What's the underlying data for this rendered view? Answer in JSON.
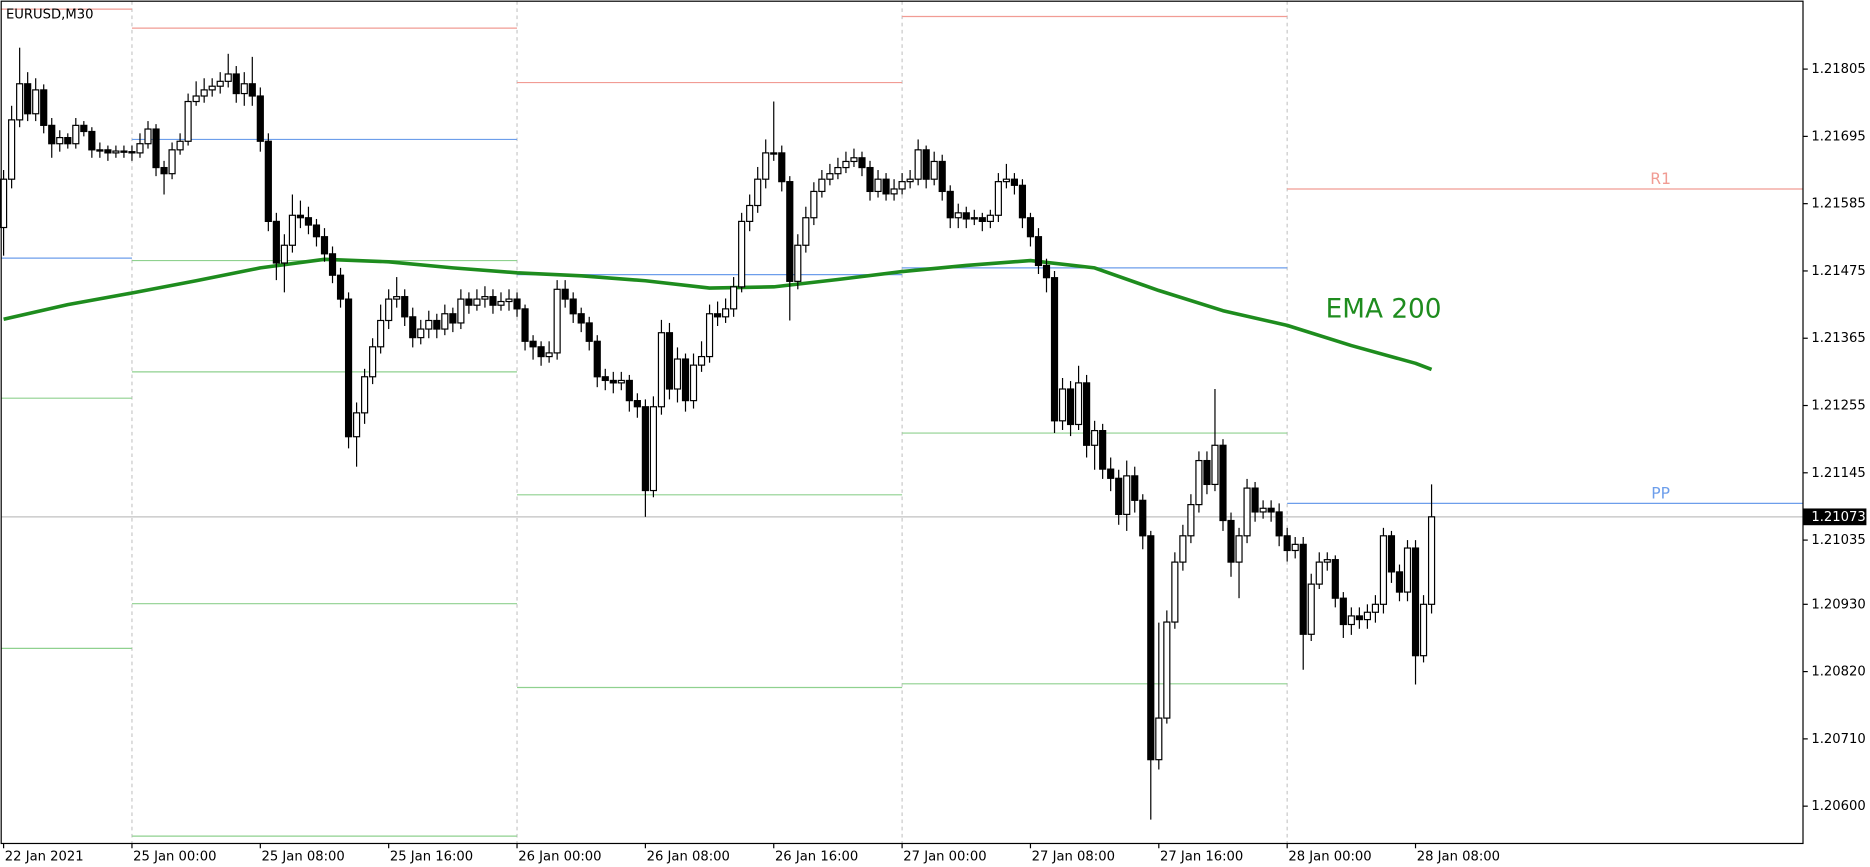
{
  "chart_data": {
    "type": "candlestick",
    "title": "EURUSD,M30",
    "open": [
      1.21546,
      1.21625,
      1.21722,
      1.21781,
      1.21732,
      1.21771,
      1.21713,
      1.21683,
      1.21693,
      1.21683,
      1.21713,
      1.21703,
      1.21673,
      1.21673,
      1.21668,
      1.21671,
      1.2167,
      1.21668,
      1.21683,
      1.21707,
      1.21644,
      1.21634,
      1.21673,
      1.21687,
      1.21752,
      1.21761,
      1.21771,
      1.21777,
      1.21785,
      1.21797,
      1.21765,
      1.21781,
      1.21761,
      1.21687,
      1.21556,
      1.21488,
      1.21517,
      1.21566,
      1.21562,
      1.2155,
      1.21531,
      1.21503,
      1.21468,
      1.21429,
      1.21204,
      1.21243,
      1.21302,
      1.21351,
      1.21394,
      1.21429,
      1.21433,
      1.214,
      1.21366,
      1.2138,
      1.21394,
      1.2138,
      1.21405,
      1.2139,
      1.21429,
      1.21419,
      1.21429,
      1.21433,
      1.21419,
      1.21425,
      1.21429,
      1.21413,
      1.2136,
      1.21351,
      1.21335,
      1.21341,
      1.21445,
      1.21429,
      1.21405,
      1.2139,
      1.2136,
      1.21302,
      1.21296,
      1.21292,
      1.21296,
      1.21263,
      1.21253,
      1.21116,
      1.21253,
      1.21374,
      1.21282,
      1.21331,
      1.21263,
      1.21321,
      1.21335,
      1.21405,
      1.214,
      1.21413,
      1.21449,
      1.21556,
      1.21582,
      1.21625,
      1.21668,
      1.21668,
      1.21621,
      1.21458,
      1.21517,
      1.21562,
      1.21605,
      1.21625,
      1.21634,
      1.21644,
      1.21654,
      1.2166,
      1.21644,
      1.21605,
      1.21625,
      1.21601,
      1.21609,
      1.21621,
      1.21625,
      1.21673,
      1.21625,
      1.21654,
      1.21605,
      1.21562,
      1.2157,
      1.2156,
      1.21562,
      1.21556,
      1.21566,
      1.21621,
      1.21625,
      1.21615,
      1.21562,
      1.21531,
      1.21484,
      1.21464,
      1.2123,
      1.21282,
      1.21224,
      1.21292,
      1.2119,
      1.21214,
      1.21151,
      1.21136,
      1.21077,
      1.2114,
      1.211,
      1.21042,
      1.20676,
      1.20744,
      1.20901,
      1.20999,
      1.21042,
      1.21093,
      1.21165,
      1.21126,
      1.2119,
      1.21067,
      1.20999,
      1.21042,
      1.2112,
      1.21081,
      1.21087,
      1.21081,
      1.21042,
      1.21018,
      1.21028,
      1.20881,
      1.20963,
      1.20999,
      1.21003,
      1.2094,
      1.20897,
      1.20911,
      1.20905,
      1.20917,
      1.2093,
      1.21042,
      1.20983,
      1.2095,
      1.21022,
      1.20846,
      1.2093
    ],
    "high": [
      1.2164,
      1.21745,
      1.2184,
      1.218,
      1.2179,
      1.2178,
      1.21725,
      1.21705,
      1.217,
      1.21725,
      1.2172,
      1.2171,
      1.21685,
      1.2168,
      1.2168,
      1.2168,
      1.2168,
      1.217,
      1.2172,
      1.21715,
      1.21655,
      1.21685,
      1.217,
      1.21765,
      1.21785,
      1.2179,
      1.2179,
      1.218,
      1.2183,
      1.2181,
      1.218,
      1.21825,
      1.21775,
      1.217,
      1.2157,
      1.21535,
      1.216,
      1.2159,
      1.2158,
      1.2156,
      1.21545,
      1.21515,
      1.2148,
      1.2144,
      1.2126,
      1.21315,
      1.21365,
      1.2142,
      1.21445,
      1.21465,
      1.21445,
      1.21415,
      1.21395,
      1.2141,
      1.21405,
      1.2142,
      1.21415,
      1.21445,
      1.2144,
      1.21445,
      1.2145,
      1.21445,
      1.2144,
      1.21445,
      1.2144,
      1.2142,
      1.2137,
      1.2136,
      1.2136,
      1.2146,
      1.2146,
      1.2144,
      1.21415,
      1.214,
      1.2137,
      1.21315,
      1.2131,
      1.2131,
      1.21305,
      1.21275,
      1.21265,
      1.2127,
      1.21395,
      1.2139,
      1.2135,
      1.2134,
      1.2134,
      1.2136,
      1.2142,
      1.21425,
      1.2143,
      1.21465,
      1.2157,
      1.216,
      1.21645,
      1.2169,
      1.21752,
      1.2168,
      1.2163,
      1.21535,
      1.2158,
      1.2162,
      1.2164,
      1.2165,
      1.2166,
      1.2167,
      1.21675,
      1.2167,
      1.21655,
      1.2164,
      1.21635,
      1.21625,
      1.21635,
      1.2164,
      1.2169,
      1.2168,
      1.2167,
      1.21665,
      1.21615,
      1.21585,
      1.2158,
      1.21575,
      1.2157,
      1.21575,
      1.21635,
      1.2165,
      1.21635,
      1.21625,
      1.2157,
      1.21545,
      1.21495,
      1.21475,
      1.213,
      1.21295,
      1.2132,
      1.21305,
      1.2123,
      1.21225,
      1.2117,
      1.2115,
      1.21165,
      1.21155,
      1.2111,
      1.2105,
      1.209,
      1.2092,
      1.21015,
      1.2106,
      1.2111,
      1.2118,
      1.2118,
      1.21282,
      1.212,
      1.2108,
      1.21055,
      1.21135,
      1.2113,
      1.211,
      1.211,
      1.21095,
      1.21055,
      1.2104,
      1.2104,
      1.2098,
      1.21015,
      1.21015,
      1.2101,
      1.2095,
      1.20925,
      1.20925,
      1.2093,
      1.20945,
      1.21055,
      1.2105,
      1.20995,
      1.21035,
      1.21035,
      1.20945,
      1.21126
    ],
    "low": [
      1.215,
      1.2161,
      1.2171,
      1.2172,
      1.2172,
      1.217,
      1.2166,
      1.2167,
      1.21675,
      1.21675,
      1.21695,
      1.2166,
      1.2166,
      1.21655,
      1.2166,
      1.2166,
      1.21655,
      1.2166,
      1.21675,
      1.2163,
      1.216,
      1.21625,
      1.21665,
      1.2168,
      1.21745,
      1.2175,
      1.2176,
      1.21765,
      1.21775,
      1.2175,
      1.21745,
      1.21745,
      1.2167,
      1.2154,
      1.2146,
      1.2144,
      1.21505,
      1.21545,
      1.21535,
      1.21515,
      1.2149,
      1.21455,
      1.21415,
      1.21185,
      1.21155,
      1.21225,
      1.2129,
      1.2134,
      1.2138,
      1.21415,
      1.21385,
      1.2135,
      1.21355,
      1.21365,
      1.21365,
      1.2137,
      1.21375,
      1.2138,
      1.21405,
      1.2141,
      1.21415,
      1.21405,
      1.2141,
      1.2141,
      1.214,
      1.21345,
      1.2133,
      1.2132,
      1.21325,
      1.2133,
      1.21415,
      1.2139,
      1.21375,
      1.21345,
      1.21285,
      1.2128,
      1.21275,
      1.2128,
      1.21245,
      1.21235,
      1.21073,
      1.21105,
      1.2124,
      1.21265,
      1.2126,
      1.21245,
      1.2125,
      1.2131,
      1.21325,
      1.21385,
      1.2139,
      1.214,
      1.2144,
      1.2154,
      1.2157,
      1.2161,
      1.21655,
      1.21605,
      1.21394,
      1.21445,
      1.21505,
      1.2155,
      1.21595,
      1.21615,
      1.21625,
      1.21635,
      1.21645,
      1.2163,
      1.2159,
      1.21595,
      1.2159,
      1.2159,
      1.216,
      1.2161,
      1.21615,
      1.2161,
      1.21615,
      1.2159,
      1.21545,
      1.21545,
      1.21545,
      1.2155,
      1.2154,
      1.21545,
      1.21555,
      1.2161,
      1.216,
      1.21545,
      1.21515,
      1.2147,
      1.2144,
      1.2121,
      1.21215,
      1.21205,
      1.21215,
      1.2117,
      1.2115,
      1.21135,
      1.21115,
      1.2106,
      1.2105,
      1.2108,
      1.2102,
      1.20578,
      1.2066,
      1.20735,
      1.2089,
      1.20985,
      1.2103,
      1.2108,
      1.2111,
      1.21115,
      1.2105,
      1.20975,
      1.2094,
      1.2103,
      1.21065,
      1.2107,
      1.21065,
      1.21025,
      1.21,
      1.21005,
      1.20823,
      1.2087,
      1.20955,
      1.20985,
      1.20925,
      1.20875,
      1.2088,
      1.2089,
      1.2089,
      1.209,
      1.20915,
      1.20965,
      1.20935,
      1.20935,
      1.20799,
      1.20835,
      1.20915
    ],
    "close": [
      1.21625,
      1.21722,
      1.21781,
      1.21732,
      1.21771,
      1.21713,
      1.21683,
      1.21693,
      1.21683,
      1.21713,
      1.21703,
      1.21673,
      1.21673,
      1.21668,
      1.21671,
      1.2167,
      1.21668,
      1.21683,
      1.21707,
      1.21644,
      1.21634,
      1.21673,
      1.21687,
      1.21752,
      1.21761,
      1.21771,
      1.21777,
      1.21785,
      1.21797,
      1.21765,
      1.21781,
      1.21761,
      1.21687,
      1.21556,
      1.21488,
      1.21517,
      1.21566,
      1.21562,
      1.2155,
      1.21531,
      1.21503,
      1.21468,
      1.21429,
      1.21204,
      1.21243,
      1.21302,
      1.21351,
      1.21394,
      1.21429,
      1.21433,
      1.214,
      1.21366,
      1.2138,
      1.21394,
      1.2138,
      1.21405,
      1.2139,
      1.21429,
      1.21419,
      1.21429,
      1.21433,
      1.21419,
      1.21425,
      1.21429,
      1.21413,
      1.2136,
      1.21351,
      1.21335,
      1.21341,
      1.21445,
      1.21429,
      1.21405,
      1.2139,
      1.2136,
      1.21302,
      1.21296,
      1.21292,
      1.21296,
      1.21263,
      1.21253,
      1.21116,
      1.21253,
      1.21374,
      1.21282,
      1.21331,
      1.21263,
      1.21321,
      1.21335,
      1.21405,
      1.214,
      1.21413,
      1.21449,
      1.21556,
      1.21582,
      1.21625,
      1.21668,
      1.21668,
      1.21621,
      1.21458,
      1.21517,
      1.21562,
      1.21605,
      1.21625,
      1.21634,
      1.21644,
      1.21654,
      1.2166,
      1.21644,
      1.21605,
      1.21625,
      1.21601,
      1.21609,
      1.21621,
      1.21625,
      1.21673,
      1.21625,
      1.21654,
      1.21605,
      1.21562,
      1.2157,
      1.2156,
      1.21562,
      1.21556,
      1.21566,
      1.21621,
      1.21625,
      1.21615,
      1.21562,
      1.21531,
      1.21484,
      1.21464,
      1.2123,
      1.21282,
      1.21224,
      1.21292,
      1.2119,
      1.21214,
      1.21151,
      1.21136,
      1.21077,
      1.2114,
      1.211,
      1.21042,
      1.20676,
      1.20744,
      1.20901,
      1.20999,
      1.21042,
      1.21093,
      1.21165,
      1.21126,
      1.2119,
      1.21067,
      1.20999,
      1.21042,
      1.2112,
      1.21081,
      1.21087,
      1.21081,
      1.21042,
      1.21018,
      1.21028,
      1.20881,
      1.20963,
      1.20999,
      1.21003,
      1.2094,
      1.20897,
      1.20911,
      1.20905,
      1.20917,
      1.2093,
      1.21042,
      1.20983,
      1.2095,
      1.21022,
      1.20846,
      1.2093,
      1.21073
    ],
    "up_color": "#ffffff",
    "down_color": "#000000",
    "xlim": [
      -0.3,
      224.3
    ],
    "xticks": [
      {
        "value": 0,
        "label": "22 Jan 2021"
      },
      {
        "value": 16,
        "label": "25 Jan 00:00"
      },
      {
        "value": 32,
        "label": "25 Jan 08:00"
      },
      {
        "value": 48,
        "label": "25 Jan 16:00"
      },
      {
        "value": 64,
        "label": "26 Jan 00:00"
      },
      {
        "value": 80,
        "label": "26 Jan 08:00"
      },
      {
        "value": 96,
        "label": "26 Jan 16:00"
      },
      {
        "value": 112,
        "label": "27 Jan 00:00"
      },
      {
        "value": 128,
        "label": "27 Jan 08:00"
      },
      {
        "value": 144,
        "label": "27 Jan 16:00"
      },
      {
        "value": 160,
        "label": "28 Jan 00:00"
      },
      {
        "value": 176,
        "label": "28 Jan 08:00"
      }
    ],
    "separators": [
      16,
      64,
      112,
      160
    ],
    "ylim": [
      1.20539,
      1.21916
    ],
    "yticks": [
      1.21805,
      1.21695,
      1.21585,
      1.21475,
      1.21365,
      1.21255,
      1.21145,
      1.21035,
      {
        "value": 1.2093,
        "label": "1.20930"
      },
      {
        "value": 1.2082,
        "label": "1.20820"
      },
      {
        "value": 1.2071,
        "label": "1.20710"
      },
      {
        "value": 1.206,
        "label": "1.20600"
      }
    ],
    "ema": {
      "name": "EMA 200",
      "color": "#1e8c1e",
      "x": [
        0,
        8,
        16,
        24,
        32,
        40,
        48,
        56,
        64,
        72,
        80,
        88,
        96,
        104,
        112,
        120,
        128,
        136,
        144,
        152,
        160,
        168,
        176,
        178
      ],
      "values": [
        1.21396,
        1.2142,
        1.21439,
        1.21459,
        1.2148,
        1.21494,
        1.2149,
        1.2148,
        1.21472,
        1.21467,
        1.21459,
        1.21447,
        1.21449,
        1.21461,
        1.21474,
        1.21484,
        1.21492,
        1.2148,
        1.21443,
        1.2141,
        1.21386,
        1.21353,
        1.21324,
        1.21314
      ]
    },
    "levels": [
      {
        "from": -0.3,
        "to": 16,
        "price": 1.21903,
        "color": "#f19c94"
      },
      {
        "from": -0.3,
        "to": 16,
        "price": 1.21496,
        "color": "#6d9eeb"
      },
      {
        "from": -0.3,
        "to": 16,
        "price": 1.21267,
        "color": "#8fd18f"
      },
      {
        "from": -0.3,
        "to": 16,
        "price": 1.20858,
        "color": "#8fd18f"
      },
      {
        "from": 16,
        "to": 64,
        "price": 1.21872,
        "color": "#f19c94"
      },
      {
        "from": 16,
        "to": 64,
        "price": 1.2169,
        "color": "#6d9eeb"
      },
      {
        "from": 16,
        "to": 64,
        "price": 1.21492,
        "color": "#8fd18f"
      },
      {
        "from": 16,
        "to": 64,
        "price": 1.2131,
        "color": "#8fd18f"
      },
      {
        "from": 16,
        "to": 64,
        "price": 1.20931,
        "color": "#8fd18f"
      },
      {
        "from": 16,
        "to": 64,
        "price": 1.20551,
        "color": "#8fd18f"
      },
      {
        "from": 64,
        "to": 112,
        "price": 1.21783,
        "color": "#f19c94"
      },
      {
        "from": 64,
        "to": 112,
        "price": 1.21469,
        "color": "#6d9eeb"
      },
      {
        "from": 64,
        "to": 112,
        "price": 1.21109,
        "color": "#8fd18f"
      },
      {
        "from": 64,
        "to": 112,
        "price": 1.20794,
        "color": "#8fd18f"
      },
      {
        "from": 112,
        "to": 160,
        "price": 1.21891,
        "color": "#f19c94"
      },
      {
        "from": 112,
        "to": 160,
        "price": 1.2148,
        "color": "#6d9eeb"
      },
      {
        "from": 112,
        "to": 160,
        "price": 1.2121,
        "color": "#8fd18f"
      },
      {
        "from": 112,
        "to": 160,
        "price": 1.208,
        "color": "#8fd18f"
      },
      {
        "from": 160,
        "to": 224.3,
        "price": 1.21609,
        "color": "#f19c94",
        "label": "R1"
      },
      {
        "from": 160,
        "to": 224.3,
        "price": 1.21095,
        "color": "#6d9eeb",
        "label": "PP"
      }
    ]
  }
}
